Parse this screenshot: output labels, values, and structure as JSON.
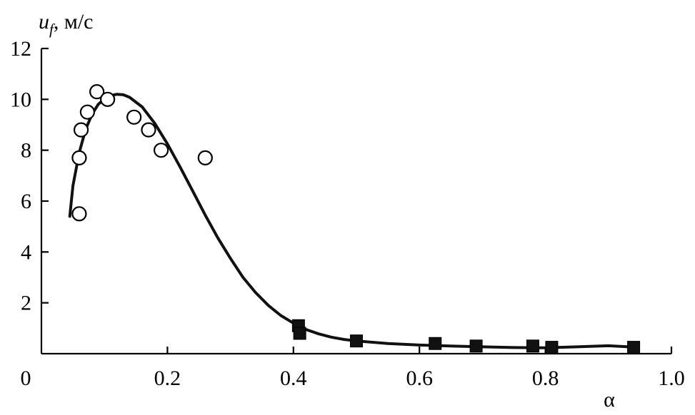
{
  "chart_data": {
    "type": "scatter",
    "title": "",
    "xlabel": "α",
    "ylabel_main": "u",
    "ylabel_sub": "f",
    "ylabel_unit": ", м/с",
    "xlim": [
      0,
      1.0
    ],
    "ylim": [
      0,
      12
    ],
    "x_ticks": [
      0,
      0.2,
      0.4,
      0.6,
      0.8,
      1.0
    ],
    "x_tick_labels": [
      "0",
      "0.2",
      "0.4",
      "0.6",
      "0.8",
      "1.0"
    ],
    "y_ticks": [
      2,
      4,
      6,
      8,
      10,
      12
    ],
    "y_tick_labels": [
      "2",
      "4",
      "6",
      "8",
      "10",
      "12"
    ],
    "grid": false,
    "series": [
      {
        "marker": "open-circle",
        "points": [
          [
            0.06,
            5.5
          ],
          [
            0.06,
            7.7
          ],
          [
            0.063,
            8.8
          ],
          [
            0.073,
            9.5
          ],
          [
            0.088,
            10.3
          ],
          [
            0.105,
            10.0
          ],
          [
            0.147,
            9.3
          ],
          [
            0.17,
            8.8
          ],
          [
            0.19,
            8.0
          ],
          [
            0.26,
            7.7
          ]
        ]
      },
      {
        "marker": "filled-square",
        "points": [
          [
            0.408,
            1.1
          ],
          [
            0.41,
            0.8
          ],
          [
            0.5,
            0.5
          ],
          [
            0.625,
            0.4
          ],
          [
            0.69,
            0.3
          ],
          [
            0.78,
            0.3
          ],
          [
            0.81,
            0.25
          ],
          [
            0.94,
            0.25
          ]
        ]
      },
      {
        "marker": "line",
        "points": [
          [
            0.045,
            5.4
          ],
          [
            0.05,
            6.6
          ],
          [
            0.06,
            7.9
          ],
          [
            0.07,
            8.8
          ],
          [
            0.08,
            9.4
          ],
          [
            0.09,
            9.8
          ],
          [
            0.1,
            10.02
          ],
          [
            0.11,
            10.15
          ],
          [
            0.12,
            10.2
          ],
          [
            0.13,
            10.18
          ],
          [
            0.14,
            10.08
          ],
          [
            0.16,
            9.7
          ],
          [
            0.18,
            9.05
          ],
          [
            0.2,
            8.25
          ],
          [
            0.22,
            7.35
          ],
          [
            0.24,
            6.4
          ],
          [
            0.26,
            5.45
          ],
          [
            0.28,
            4.55
          ],
          [
            0.3,
            3.75
          ],
          [
            0.32,
            3.0
          ],
          [
            0.34,
            2.4
          ],
          [
            0.36,
            1.9
          ],
          [
            0.38,
            1.5
          ],
          [
            0.4,
            1.2
          ],
          [
            0.42,
            0.95
          ],
          [
            0.44,
            0.78
          ],
          [
            0.46,
            0.65
          ],
          [
            0.48,
            0.56
          ],
          [
            0.5,
            0.5
          ],
          [
            0.55,
            0.4
          ],
          [
            0.6,
            0.34
          ],
          [
            0.65,
            0.3
          ],
          [
            0.7,
            0.27
          ],
          [
            0.75,
            0.24
          ],
          [
            0.8,
            0.23
          ],
          [
            0.85,
            0.27
          ],
          [
            0.9,
            0.31
          ],
          [
            0.94,
            0.26
          ]
        ]
      }
    ]
  }
}
